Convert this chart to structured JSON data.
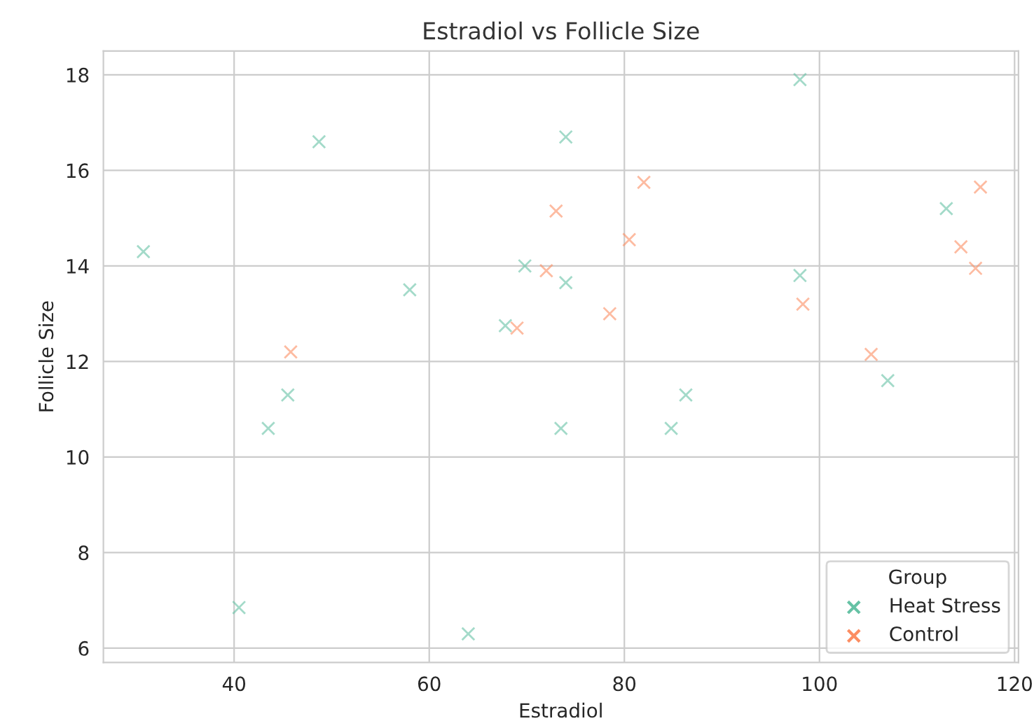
{
  "chart_data": {
    "type": "scatter",
    "title": "Estradiol vs Follicle Size",
    "xlabel": "Estradiol",
    "ylabel": "Follicle Size",
    "legend_title": "Group",
    "legend": "bottom right",
    "grid": true,
    "marker": "cross",
    "xlim": [
      26.6,
      120.4
    ],
    "ylim": [
      5.7,
      18.5
    ],
    "xticks": [
      40,
      60,
      80,
      100,
      120
    ],
    "yticks": [
      6,
      8,
      10,
      12,
      14,
      16,
      18
    ],
    "series": [
      {
        "name": "Heat Stress",
        "color": "#66c2a5",
        "x": [
          30.7,
          69.8,
          67.8,
          48.7,
          74,
          58,
          74,
          45.5,
          43.5,
          40.5,
          64,
          73.5,
          84.8,
          86.3,
          98,
          98,
          113,
          107
        ],
        "values": [
          14.3,
          14.0,
          12.75,
          16.6,
          16.7,
          13.5,
          13.65,
          11.3,
          10.6,
          6.85,
          6.3,
          10.6,
          10.6,
          11.3,
          13.8,
          17.9,
          15.2,
          11.6
        ]
      },
      {
        "name": "Control",
        "color": "#fc8d62",
        "x": [
          73,
          82,
          80.5,
          72,
          69,
          78.5,
          98.3,
          116.5,
          114.5,
          116,
          105.3,
          45.8
        ],
        "values": [
          15.15,
          15.75,
          14.55,
          13.9,
          12.7,
          13.0,
          13.2,
          15.65,
          14.4,
          13.95,
          12.15,
          12.2
        ]
      }
    ]
  }
}
